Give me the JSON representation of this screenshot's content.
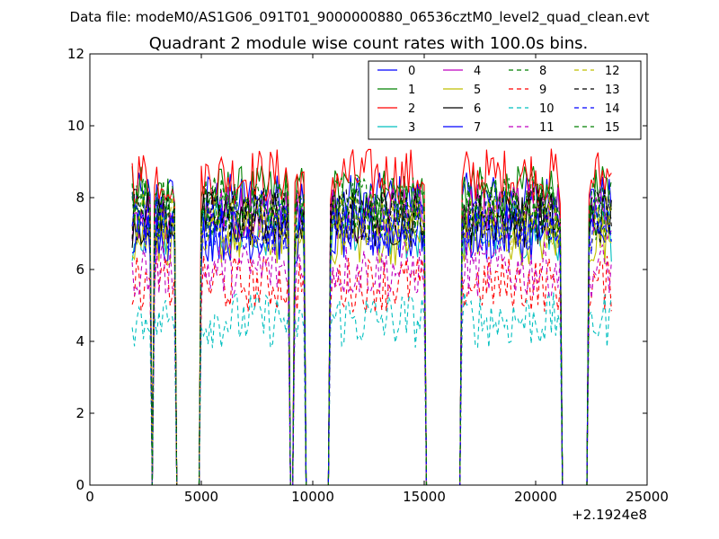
{
  "figure": {
    "suptitle": "Data file: modeM0/AS1G06_091T01_9000000880_06536cztM0_level2_quad_clean.evt",
    "title": "Quadrant 2 module wise count rates with 100.0s bins.",
    "x_offset_label": "+2.1924e8"
  },
  "chart_data": {
    "type": "line",
    "title": "Quadrant 2 module wise count rates with 100.0s bins.",
    "xlabel": "",
    "ylabel": "",
    "xlim": [
      0,
      25000
    ],
    "ylim": [
      0,
      12
    ],
    "x_offset": 219240000,
    "x_ticks": [
      0,
      5000,
      10000,
      15000,
      20000,
      25000
    ],
    "y_ticks": [
      0,
      2,
      4,
      6,
      8,
      10,
      12
    ],
    "grid": false,
    "legend": {
      "placement": "top-right",
      "columns": 4
    },
    "segments": [
      {
        "start": 1900,
        "end": 2700
      },
      {
        "start": 2900,
        "end": 3800
      },
      {
        "start": 5000,
        "end": 8900
      },
      {
        "start": 9200,
        "end": 9600
      },
      {
        "start": 10800,
        "end": 15000
      },
      {
        "start": 16700,
        "end": 21100
      },
      {
        "start": 22400,
        "end": 23400
      }
    ],
    "series": [
      {
        "name": "0",
        "color": "#0000ff",
        "dash": "solid",
        "level": 7.9
      },
      {
        "name": "1",
        "color": "#008000",
        "dash": "solid",
        "level": 8.1
      },
      {
        "name": "2",
        "color": "#ff0000",
        "dash": "solid",
        "level": 8.6
      },
      {
        "name": "3",
        "color": "#00bfbf",
        "dash": "solid",
        "level": 7.0
      },
      {
        "name": "4",
        "color": "#bf00bf",
        "dash": "solid",
        "level": 7.6
      },
      {
        "name": "5",
        "color": "#bfbf00",
        "dash": "solid",
        "level": 6.9
      },
      {
        "name": "6",
        "color": "#000000",
        "dash": "solid",
        "level": 7.4
      },
      {
        "name": "7",
        "color": "#0000ff",
        "dash": "solid",
        "level": 7.0
      },
      {
        "name": "8",
        "color": "#008000",
        "dash": "dashed",
        "level": 7.6
      },
      {
        "name": "9",
        "color": "#ff0000",
        "dash": "dashed",
        "level": 5.6
      },
      {
        "name": "10",
        "color": "#00bfbf",
        "dash": "dashed",
        "level": 4.6
      },
      {
        "name": "11",
        "color": "#bf00bf",
        "dash": "dashed",
        "level": 6.0
      },
      {
        "name": "12",
        "color": "#bfbf00",
        "dash": "dashed",
        "level": 7.3
      },
      {
        "name": "13",
        "color": "#000000",
        "dash": "dashed",
        "level": 7.5
      },
      {
        "name": "14",
        "color": "#0000ff",
        "dash": "dashed",
        "level": 7.2
      },
      {
        "name": "15",
        "color": "#008000",
        "dash": "dashed",
        "level": 7.8
      }
    ]
  }
}
